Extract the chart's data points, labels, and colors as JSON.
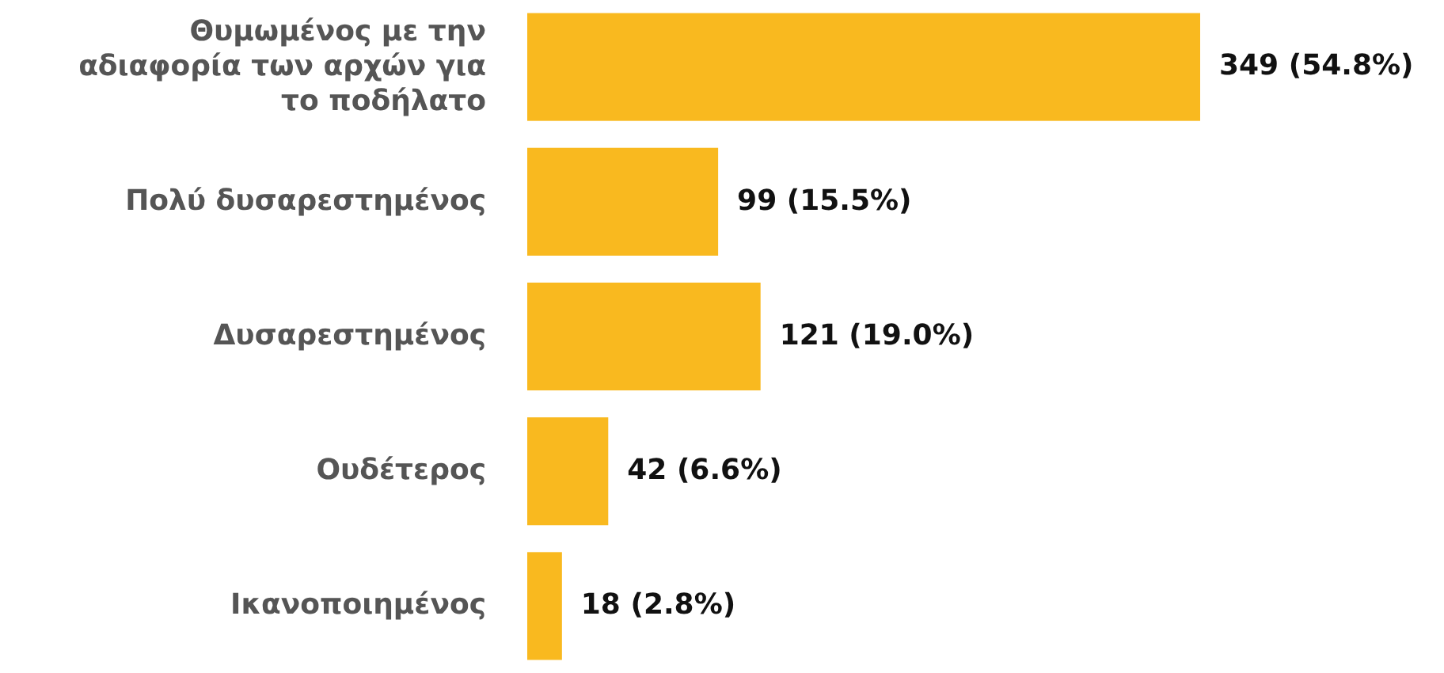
{
  "chart_data": {
    "type": "bar",
    "orientation": "horizontal",
    "categories": [
      "Θυμωμένος με την αδιαφορία των αρχών για το ποδήλατο",
      "Πολύ δυσαρεστημένος",
      "Δυσαρεστημένος",
      "Ουδέτερος",
      "Ικανοποιημένος"
    ],
    "values": [
      349,
      99,
      121,
      42,
      18
    ],
    "color": "#f9b91f",
    "value_labels": [
      "349 (54.8%)",
      "99 (15.5%)",
      "121 (19.0%)",
      "42 (6.6%)",
      "18 (2.8%)"
    ]
  }
}
